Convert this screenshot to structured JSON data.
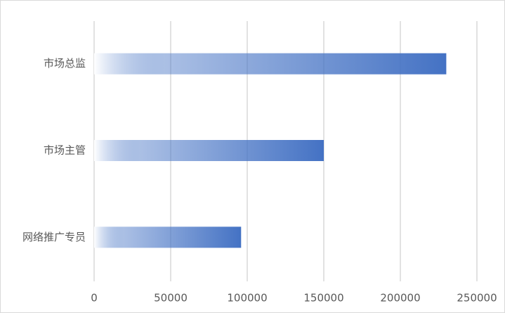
{
  "chart_data": {
    "type": "bar",
    "orientation": "horizontal",
    "categories": [
      "市场总监",
      "市场主管",
      "网络推广专员"
    ],
    "values": [
      230000,
      150000,
      96000
    ],
    "color": "#4472c4",
    "xlim": [
      0,
      250000
    ],
    "xticks": [
      0,
      50000,
      100000,
      150000,
      200000,
      250000
    ],
    "grid": true
  }
}
